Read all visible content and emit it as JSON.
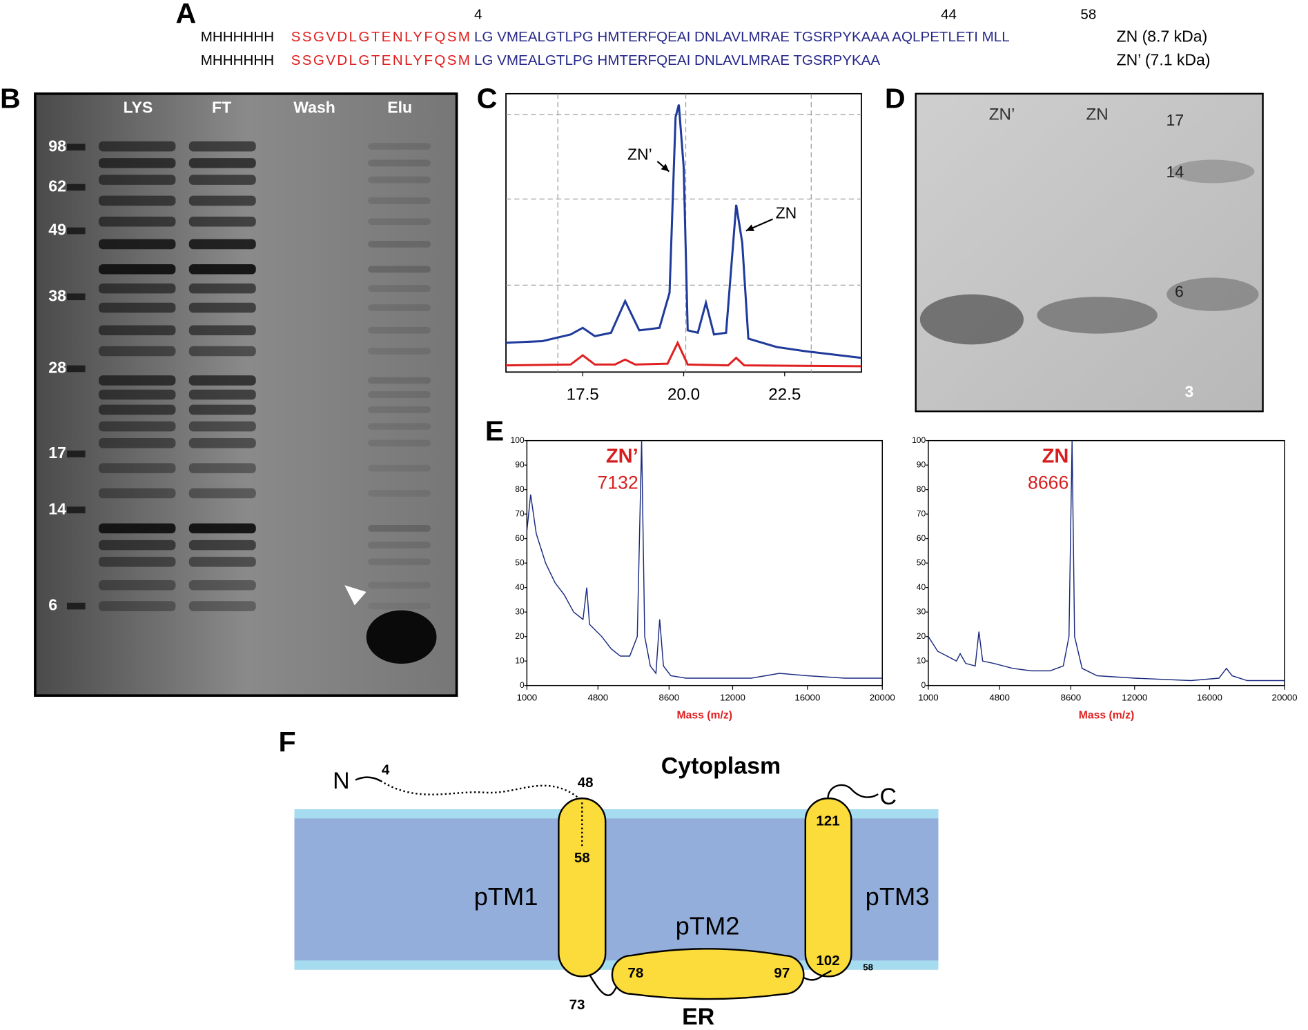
{
  "panel_labels": [
    "A",
    "B",
    "C",
    "D",
    "E",
    "F"
  ],
  "panel_a": {
    "position_numbers": [
      4,
      44,
      58
    ],
    "rows": [
      {
        "tag": "MHHHHHH",
        "linker": "SSGVDLGTENLYFQSM",
        "sequence": "LG VMEALGTLPG HMTERFQEAI DNLAVLMRAE TGSRPYKAAA AQLPETLETI MLL",
        "label": "ZN (8.7 kDa)"
      },
      {
        "tag": "MHHHHHH",
        "linker": "SSGVDLGTENLYFQSM",
        "sequence": "LG VMEALGTLPG HMTERFQEAI DNLAVLMRAE TGSRPYKAA",
        "label": "ZN’ (7.1 kDa)"
      }
    ]
  },
  "panel_b": {
    "lanes": [
      "LYS",
      "FT",
      "Wash",
      "Elu"
    ],
    "markers": [
      98,
      62,
      49,
      38,
      28,
      17,
      14,
      6
    ]
  },
  "panel_d": {
    "lanes": [
      "ZN’",
      "ZN"
    ],
    "markers": [
      17,
      14,
      6,
      3
    ]
  },
  "panel_f": {
    "compartments": [
      "Cytoplasm",
      "ER"
    ],
    "termini": [
      "N",
      "C"
    ],
    "helices": [
      "pTM1",
      "pTM2",
      "pTM3"
    ],
    "residues": [
      4,
      48,
      58,
      121,
      102,
      58,
      78,
      97,
      73
    ]
  },
  "chart_data": [
    {
      "type": "line",
      "xlim": [
        15.6,
        24.4
      ],
      "ylim": [
        0,
        100
      ],
      "xticks": [
        17.5,
        {
          "value": 20,
          "label": "20.0"
        },
        22.5
      ],
      "grid": true,
      "annotations": [
        "ZN’",
        "ZN"
      ],
      "series": [
        {
          "color": "#1f3a9a",
          "x": [
            15.6,
            16.5,
            17.2,
            17.5,
            17.8,
            18.2,
            18.55,
            18.9,
            19.4,
            19.65,
            19.8,
            19.88,
            20.0,
            20.1,
            20.35,
            20.55,
            20.75,
            21.05,
            21.3,
            21.45,
            21.6,
            22.3,
            23.0,
            24.4
          ],
          "values": [
            10.5,
            11.1,
            13.5,
            15.9,
            12.9,
            14.1,
            25.5,
            15.0,
            15.9,
            28.5,
            91.6,
            96.1,
            73.6,
            15.0,
            14.1,
            24.9,
            13.5,
            14.1,
            60.1,
            46.5,
            12.0,
            9.0,
            7.5,
            5.1
          ]
        },
        {
          "color": "#e02020",
          "x": [
            15.6,
            17.2,
            17.5,
            17.8,
            18.3,
            18.55,
            18.8,
            19.6,
            19.85,
            20.1,
            21.1,
            21.3,
            21.5,
            24.4
          ],
          "values": [
            2.4,
            2.7,
            6.0,
            2.7,
            2.7,
            4.5,
            2.7,
            3.0,
            10.5,
            2.7,
            2.4,
            5.1,
            2.4,
            2.1
          ]
        }
      ]
    },
    {
      "type": "line",
      "xlabel": "Mass (m/z)",
      "xlim": [
        1000,
        20000
      ],
      "ylim": [
        0,
        100
      ],
      "xticks": [
        1000,
        4800,
        8600,
        12000,
        16000,
        20000
      ],
      "yticks": [
        0,
        10,
        20,
        30,
        40,
        50,
        60,
        70,
        80,
        90,
        100
      ],
      "peak": {
        "label": "ZN’",
        "mass": 7132
      },
      "series": [
        {
          "color": "#1a2a80",
          "x": [
            1000,
            1200,
            1500,
            2000,
            2500,
            3000,
            3500,
            4000,
            4200,
            4350,
            5000,
            5500,
            6000,
            6500,
            6900,
            7132,
            7300,
            7600,
            7900,
            8100,
            8300,
            8700,
            9500,
            11000,
            13000,
            14500,
            16000,
            18000,
            20000
          ],
          "values": [
            63,
            78,
            62,
            50,
            42,
            37,
            30,
            27,
            40,
            25,
            20,
            15,
            12,
            12,
            20,
            100,
            20,
            8,
            5,
            27,
            8,
            4,
            3,
            3,
            3,
            5,
            4,
            3,
            3
          ]
        }
      ]
    },
    {
      "type": "line",
      "xlabel": "Mass (m/z)",
      "xlim": [
        1000,
        20000
      ],
      "ylim": [
        0,
        100
      ],
      "xticks": [
        1000,
        4800,
        8600,
        12000,
        16000,
        20000
      ],
      "yticks": [
        0,
        10,
        20,
        30,
        40,
        50,
        60,
        70,
        80,
        90,
        100
      ],
      "peak": {
        "label": "ZN",
        "mass": 8666
      },
      "series": [
        {
          "color": "#1a2a80",
          "x": [
            1000,
            1500,
            2000,
            2500,
            2700,
            3000,
            3500,
            3700,
            3900,
            4500,
            5500,
            6500,
            7500,
            8200,
            8500,
            8666,
            8800,
            9200,
            10000,
            12000,
            15000,
            16500,
            16900,
            17200,
            18000,
            20000
          ],
          "values": [
            20,
            14,
            12,
            10,
            13,
            9,
            8,
            22,
            10,
            9,
            7,
            6,
            6,
            8,
            20,
            100,
            20,
            7,
            4,
            3,
            2,
            3,
            7,
            4,
            2,
            2
          ]
        }
      ]
    }
  ]
}
